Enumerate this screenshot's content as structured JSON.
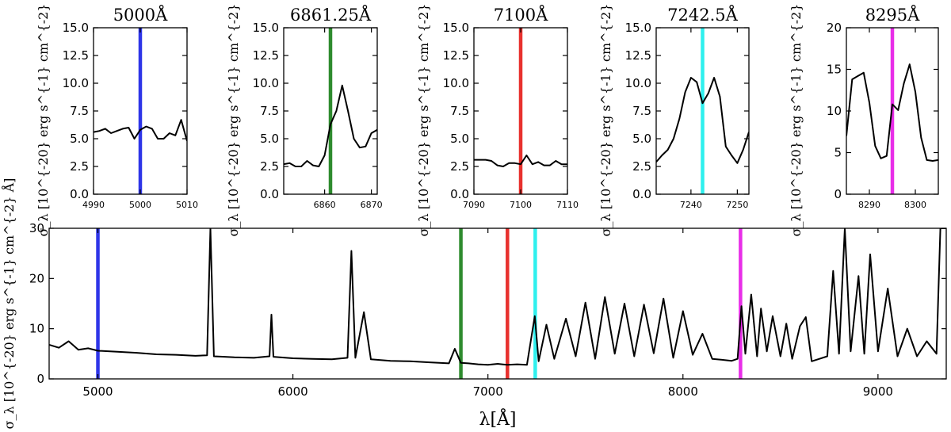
{
  "chart_data": [
    {
      "type": "line",
      "title": "5000Å",
      "ylabel": "σ_λ [10^{-20} erg s^{-1} cm^{-2} Å]",
      "xlim": [
        4990,
        5010
      ],
      "ylim": [
        0,
        15
      ],
      "xticks": [
        4990,
        5000,
        5010
      ],
      "yticks": [
        "0.0",
        "2.5",
        "5.0",
        "7.5",
        "10.0",
        "12.5",
        "15.0"
      ],
      "marker": {
        "x": 5000,
        "color": "#2e35e8"
      },
      "series": [
        {
          "name": "sigma",
          "x": [
            4990,
            4991.25,
            4992.5,
            4993.75,
            4995,
            4996.25,
            4997.5,
            4998.75,
            5000,
            5001.25,
            5002.5,
            5003.75,
            5005,
            5006.25,
            5007.5,
            5008.75,
            5010
          ],
          "values": [
            5.6,
            5.7,
            5.9,
            5.5,
            5.7,
            5.9,
            6.0,
            5.0,
            5.8,
            6.1,
            5.9,
            5.0,
            5.0,
            5.5,
            5.3,
            6.7,
            4.8
          ]
        }
      ]
    },
    {
      "type": "line",
      "title": "6861.25Å",
      "ylabel": "σ_λ [10^{-20} erg s^{-1} cm^{-2} Å]",
      "xlim": [
        6851.25,
        6871.25
      ],
      "ylim": [
        0,
        15
      ],
      "xticks": [
        6860,
        6870
      ],
      "yticks": [
        "0.0",
        "2.5",
        "5.0",
        "7.5",
        "10.0",
        "12.5",
        "15.0"
      ],
      "marker": {
        "x": 6861.25,
        "color": "#2e8b2e"
      },
      "series": [
        {
          "name": "sigma",
          "x": [
            6851.25,
            6852.5,
            6853.75,
            6855,
            6856.25,
            6857.5,
            6858.75,
            6860,
            6861.25,
            6862.5,
            6863.75,
            6865,
            6866.25,
            6867.5,
            6868.75,
            6870,
            6871.25
          ],
          "values": [
            2.7,
            2.8,
            2.5,
            2.5,
            3.0,
            2.6,
            2.5,
            3.5,
            6.3,
            7.5,
            9.8,
            7.5,
            5.0,
            4.2,
            4.3,
            5.5,
            5.8
          ]
        }
      ]
    },
    {
      "type": "line",
      "title": "7100Å",
      "ylabel": "σ_λ [10^{-20} erg s^{-1} cm^{-2} Å]",
      "xlim": [
        7090,
        7110
      ],
      "ylim": [
        0,
        15
      ],
      "xticks": [
        7090,
        7100,
        7110
      ],
      "yticks": [
        "0.0",
        "2.5",
        "5.0",
        "7.5",
        "10.0",
        "12.5",
        "15.0"
      ],
      "marker": {
        "x": 7100,
        "color": "#e8312e"
      },
      "series": [
        {
          "name": "sigma",
          "x": [
            7090,
            7091.25,
            7092.5,
            7093.75,
            7095,
            7096.25,
            7097.5,
            7098.75,
            7100,
            7101.25,
            7102.5,
            7103.75,
            7105,
            7106.25,
            7107.5,
            7108.75,
            7110
          ],
          "values": [
            3.1,
            3.1,
            3.1,
            3.0,
            2.6,
            2.5,
            2.8,
            2.8,
            2.7,
            3.5,
            2.7,
            2.9,
            2.6,
            2.6,
            3.0,
            2.7,
            2.7
          ]
        }
      ]
    },
    {
      "type": "line",
      "title": "7242.5Å",
      "ylabel": "σ_λ [10^{-20} erg s^{-1} cm^{-2} Å]",
      "xlim": [
        7232.5,
        7252.5
      ],
      "ylim": [
        0,
        15
      ],
      "xticks": [
        7240,
        7250
      ],
      "yticks": [
        "0.0",
        "2.5",
        "5.0",
        "7.5",
        "10.0",
        "12.5",
        "15.0"
      ],
      "marker": {
        "x": 7242.5,
        "color": "#2ef0ee"
      },
      "series": [
        {
          "name": "sigma",
          "x": [
            7232.5,
            7233.75,
            7235,
            7236.25,
            7237.5,
            7238.75,
            7240,
            7241.25,
            7242.5,
            7243.75,
            7245,
            7246.25,
            7247.5,
            7248.75,
            7250,
            7251.25,
            7252.5
          ],
          "values": [
            2.9,
            3.5,
            4.0,
            5.0,
            6.8,
            9.2,
            10.5,
            10.1,
            8.2,
            9.1,
            10.5,
            8.8,
            4.3,
            3.5,
            2.8,
            4.0,
            5.6
          ]
        }
      ]
    },
    {
      "type": "line",
      "title": "8295Å",
      "ylabel": "σ_λ [10^{-20} erg s^{-1} cm^{-2} Å]",
      "xlim": [
        8285,
        8305
      ],
      "ylim": [
        0,
        20
      ],
      "xticks": [
        8290,
        8300
      ],
      "yticks": [
        "0",
        "5",
        "10",
        "15",
        "20"
      ],
      "marker": {
        "x": 8295,
        "color": "#e82ee8"
      },
      "series": [
        {
          "name": "sigma",
          "x": [
            8285,
            8286.25,
            8287.5,
            8288.75,
            8290,
            8291.25,
            8292.5,
            8293.75,
            8295,
            8296.25,
            8297.5,
            8298.75,
            8300,
            8301.25,
            8302.5,
            8303.75,
            8305
          ],
          "values": [
            7.0,
            13.8,
            14.2,
            14.6,
            11.0,
            5.8,
            4.3,
            4.6,
            10.8,
            10.1,
            13.3,
            15.6,
            12.3,
            6.8,
            4.1,
            4.0,
            4.1
          ]
        }
      ]
    },
    {
      "type": "line",
      "title": "",
      "xlabel": "λ[Å]",
      "ylabel": "σ_λ [10^{-20} erg s^{-1} cm^{-2} Å]",
      "xlim": [
        4750,
        9350
      ],
      "ylim": [
        0,
        30
      ],
      "xticks": [
        5000,
        6000,
        7000,
        8000,
        9000
      ],
      "yticks": [
        "0",
        "10",
        "20",
        "30"
      ],
      "markers": [
        {
          "x": 5000,
          "color": "#2e35e8"
        },
        {
          "x": 6861.25,
          "color": "#2e8b2e"
        },
        {
          "x": 7100,
          "color": "#e8312e"
        },
        {
          "x": 7242.5,
          "color": "#2ef0ee"
        },
        {
          "x": 8295,
          "color": "#e82ee8"
        }
      ],
      "series": [
        {
          "name": "sigma",
          "x": [
            4750,
            4800,
            4850,
            4900,
            4950,
            5000,
            5100,
            5200,
            5300,
            5400,
            5500,
            5560,
            5577,
            5595,
            5650,
            5700,
            5800,
            5880,
            5890,
            5900,
            6000,
            6100,
            6200,
            6280,
            6300,
            6320,
            6364,
            6400,
            6500,
            6600,
            6700,
            6800,
            6830,
            6861,
            6900,
            6950,
            7000,
            7050,
            7100,
            7150,
            7200,
            7240,
            7260,
            7300,
            7340,
            7400,
            7450,
            7500,
            7550,
            7600,
            7650,
            7700,
            7750,
            7800,
            7850,
            7900,
            7950,
            8000,
            8050,
            8100,
            8150,
            8200,
            8250,
            8280,
            8300,
            8320,
            8350,
            8380,
            8400,
            8430,
            8460,
            8500,
            8530,
            8560,
            8600,
            8630,
            8660,
            8700,
            8740,
            8770,
            8800,
            8830,
            8860,
            8900,
            8930,
            8960,
            9000,
            9050,
            9100,
            9150,
            9200,
            9250,
            9300,
            9320,
            9350
          ],
          "values": [
            6.8,
            6.2,
            7.5,
            5.8,
            6.1,
            5.6,
            5.4,
            5.2,
            4.9,
            4.8,
            4.6,
            4.7,
            30,
            4.5,
            4.4,
            4.3,
            4.2,
            4.5,
            12.8,
            4.4,
            4.1,
            4.0,
            3.9,
            4.2,
            25.5,
            4.2,
            13.3,
            3.9,
            3.6,
            3.5,
            3.3,
            3.1,
            6.0,
            3.2,
            3.1,
            2.9,
            2.8,
            3.0,
            2.8,
            2.9,
            2.8,
            12.5,
            3.5,
            10.8,
            4.0,
            12.0,
            4.5,
            15.2,
            4.0,
            16.3,
            5.0,
            15.0,
            4.5,
            14.8,
            5.1,
            16.0,
            4.2,
            13.5,
            4.8,
            9.0,
            4.0,
            3.8,
            3.6,
            4.0,
            14.5,
            5.0,
            16.8,
            4.5,
            14.0,
            5.5,
            12.5,
            4.5,
            11.0,
            4.0,
            10.5,
            12.3,
            3.5,
            4.0,
            4.5,
            21.5,
            5.0,
            30,
            5.5,
            20.5,
            5.0,
            24.8,
            5.5,
            18.0,
            4.5,
            10.0,
            4.5,
            7.5,
            5.0,
            30,
            30
          ]
        }
      ]
    }
  ]
}
